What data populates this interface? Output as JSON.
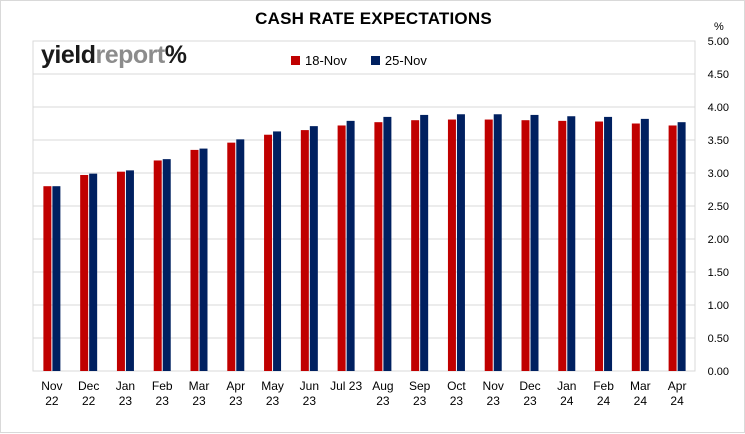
{
  "chart_data": {
    "type": "bar",
    "title": "CASH RATE EXPECTATIONS",
    "unit": "%",
    "brand": {
      "part1": "yield",
      "part2": "report",
      "symbol": "%"
    },
    "categories": [
      [
        "Nov",
        "22"
      ],
      [
        "Dec",
        "22"
      ],
      [
        "Jan",
        "23"
      ],
      [
        "Feb",
        "23"
      ],
      [
        "Mar",
        "23"
      ],
      [
        "Apr",
        "23"
      ],
      [
        "May",
        "23"
      ],
      [
        "Jun",
        "23"
      ],
      [
        "Jul 23",
        ""
      ],
      [
        "Aug",
        "23"
      ],
      [
        "Sep",
        "23"
      ],
      [
        "Oct",
        "23"
      ],
      [
        "Nov",
        "23"
      ],
      [
        "Dec",
        "23"
      ],
      [
        "Jan",
        "24"
      ],
      [
        "Feb",
        "24"
      ],
      [
        "Mar",
        "24"
      ],
      [
        "Apr",
        "24"
      ]
    ],
    "series": [
      {
        "name": "18-Nov",
        "color": "#c00000",
        "values": [
          2.8,
          2.97,
          3.02,
          3.19,
          3.35,
          3.46,
          3.58,
          3.65,
          3.72,
          3.77,
          3.8,
          3.81,
          3.81,
          3.8,
          3.79,
          3.78,
          3.75,
          3.72
        ]
      },
      {
        "name": "25-Nov",
        "color": "#002060",
        "values": [
          2.8,
          2.99,
          3.04,
          3.21,
          3.37,
          3.51,
          3.63,
          3.71,
          3.79,
          3.85,
          3.88,
          3.89,
          3.89,
          3.88,
          3.86,
          3.85,
          3.82,
          3.77
        ]
      }
    ],
    "ylim": [
      0,
      5
    ],
    "ytick_step": 0.5,
    "ytick_labels": [
      "0.00",
      "0.50",
      "1.00",
      "1.50",
      "2.00",
      "2.50",
      "3.00",
      "3.50",
      "4.00",
      "4.50",
      "5.00"
    ],
    "axis_position": "right",
    "grid": true,
    "legend_position": "top-center"
  }
}
